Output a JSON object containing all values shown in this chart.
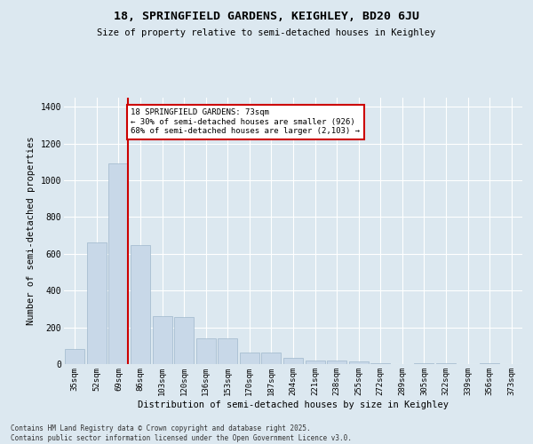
{
  "title_line1": "18, SPRINGFIELD GARDENS, KEIGHLEY, BD20 6JU",
  "title_line2": "Size of property relative to semi-detached houses in Keighley",
  "xlabel": "Distribution of semi-detached houses by size in Keighley",
  "ylabel": "Number of semi-detached properties",
  "categories": [
    "35sqm",
    "52sqm",
    "69sqm",
    "86sqm",
    "103sqm",
    "120sqm",
    "136sqm",
    "153sqm",
    "170sqm",
    "187sqm",
    "204sqm",
    "221sqm",
    "238sqm",
    "255sqm",
    "272sqm",
    "289sqm",
    "305sqm",
    "322sqm",
    "339sqm",
    "356sqm",
    "373sqm"
  ],
  "values": [
    80,
    660,
    1090,
    650,
    260,
    255,
    140,
    140,
    65,
    65,
    35,
    20,
    20,
    13,
    5,
    0,
    5,
    5,
    0,
    5,
    0
  ],
  "bar_color": "#c8d8e8",
  "bar_edge_color": "#a0b8cc",
  "vline_color": "#cc0000",
  "vline_x": 2.42,
  "annotation_text": "18 SPRINGFIELD GARDENS: 73sqm\n← 30% of semi-detached houses are smaller (926)\n68% of semi-detached houses are larger (2,103) →",
  "annotation_box_color": "#ffffff",
  "annotation_box_edgecolor": "#cc0000",
  "ylim": [
    0,
    1450
  ],
  "yticks": [
    0,
    200,
    400,
    600,
    800,
    1000,
    1200,
    1400
  ],
  "background_color": "#dce8f0",
  "footer_text": "Contains HM Land Registry data © Crown copyright and database right 2025.\nContains public sector information licensed under the Open Government Licence v3.0.",
  "figsize": [
    6.0,
    5.0
  ],
  "dpi": 100
}
